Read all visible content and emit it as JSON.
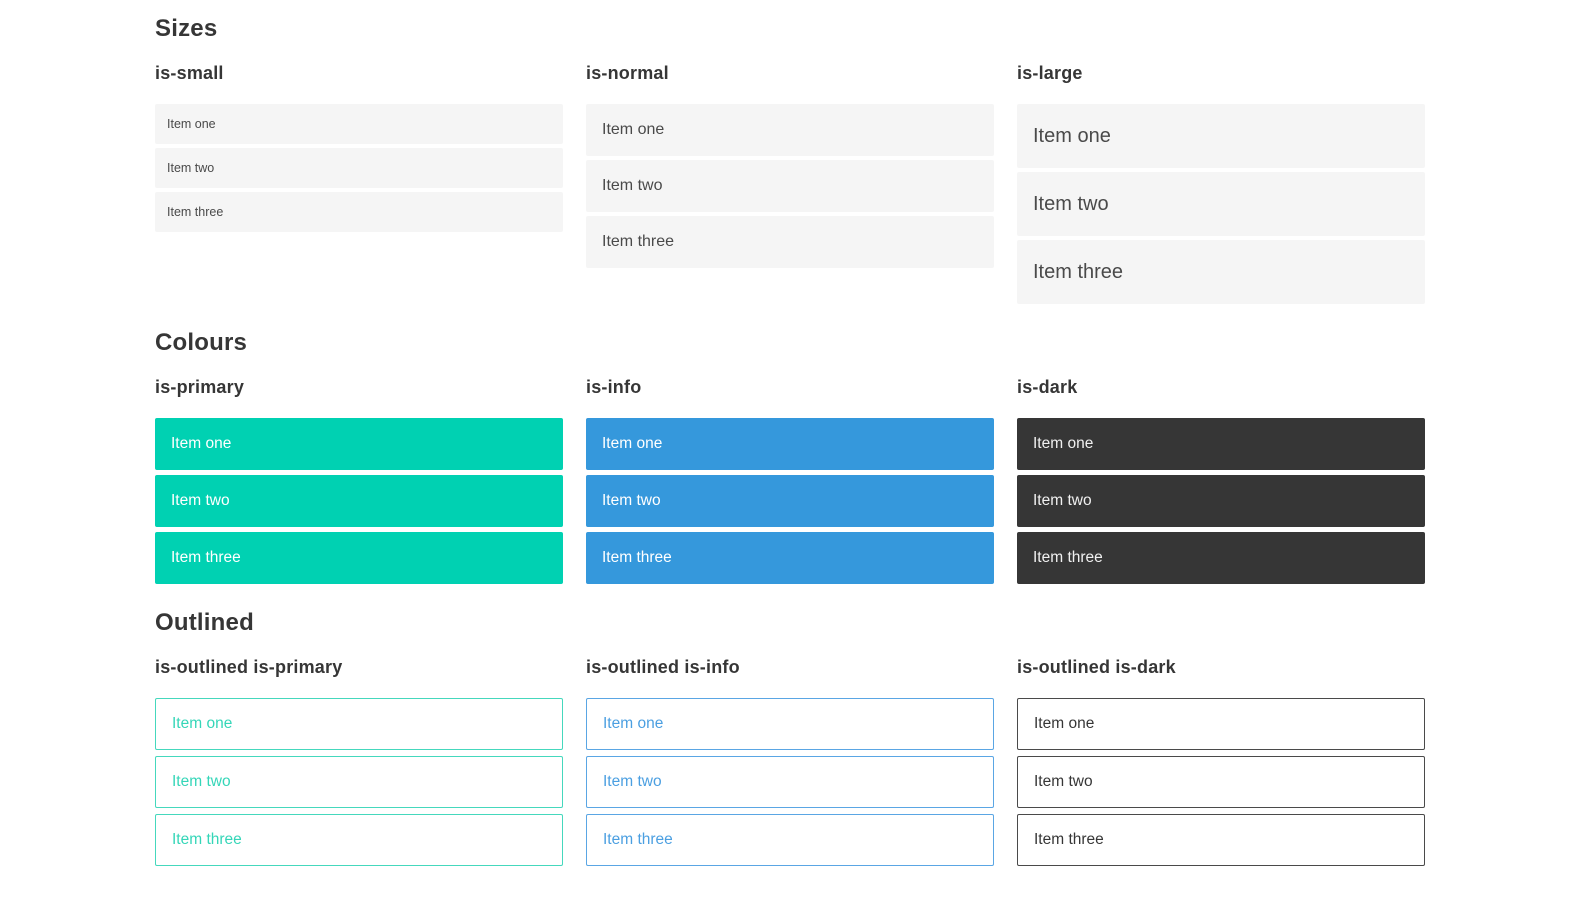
{
  "colors": {
    "primary": "#00d1b2",
    "info": "#3598dc",
    "dark": "#363636",
    "item_light_background": "#f5f5f5",
    "item_text": "#4a4a4a",
    "heading_text": "#363636",
    "outlined_primary": "#35d6b8",
    "outlined_info": "#4b9fe1",
    "outlined_dark": "#363636"
  },
  "sections": [
    {
      "title": "Sizes",
      "groups": [
        {
          "label": "is-small",
          "items": [
            "Item one",
            "Item two",
            "Item three"
          ]
        },
        {
          "label": "is-normal",
          "items": [
            "Item one",
            "Item two",
            "Item three"
          ]
        },
        {
          "label": "is-large",
          "items": [
            "Item one",
            "Item two",
            "Item three"
          ]
        }
      ]
    },
    {
      "title": "Colours",
      "groups": [
        {
          "label": "is-primary",
          "items": [
            "Item one",
            "Item two",
            "Item three"
          ]
        },
        {
          "label": "is-info",
          "items": [
            "Item one",
            "Item two",
            "Item three"
          ]
        },
        {
          "label": "is-dark",
          "items": [
            "Item one",
            "Item two",
            "Item three"
          ]
        }
      ]
    },
    {
      "title": "Outlined",
      "groups": [
        {
          "label": "is-outlined is-primary",
          "items": [
            "Item one",
            "Item two",
            "Item three"
          ]
        },
        {
          "label": "is-outlined is-info",
          "items": [
            "Item one",
            "Item two",
            "Item three"
          ]
        },
        {
          "label": "is-outlined is-dark",
          "items": [
            "Item one",
            "Item two",
            "Item three"
          ]
        }
      ]
    }
  ]
}
